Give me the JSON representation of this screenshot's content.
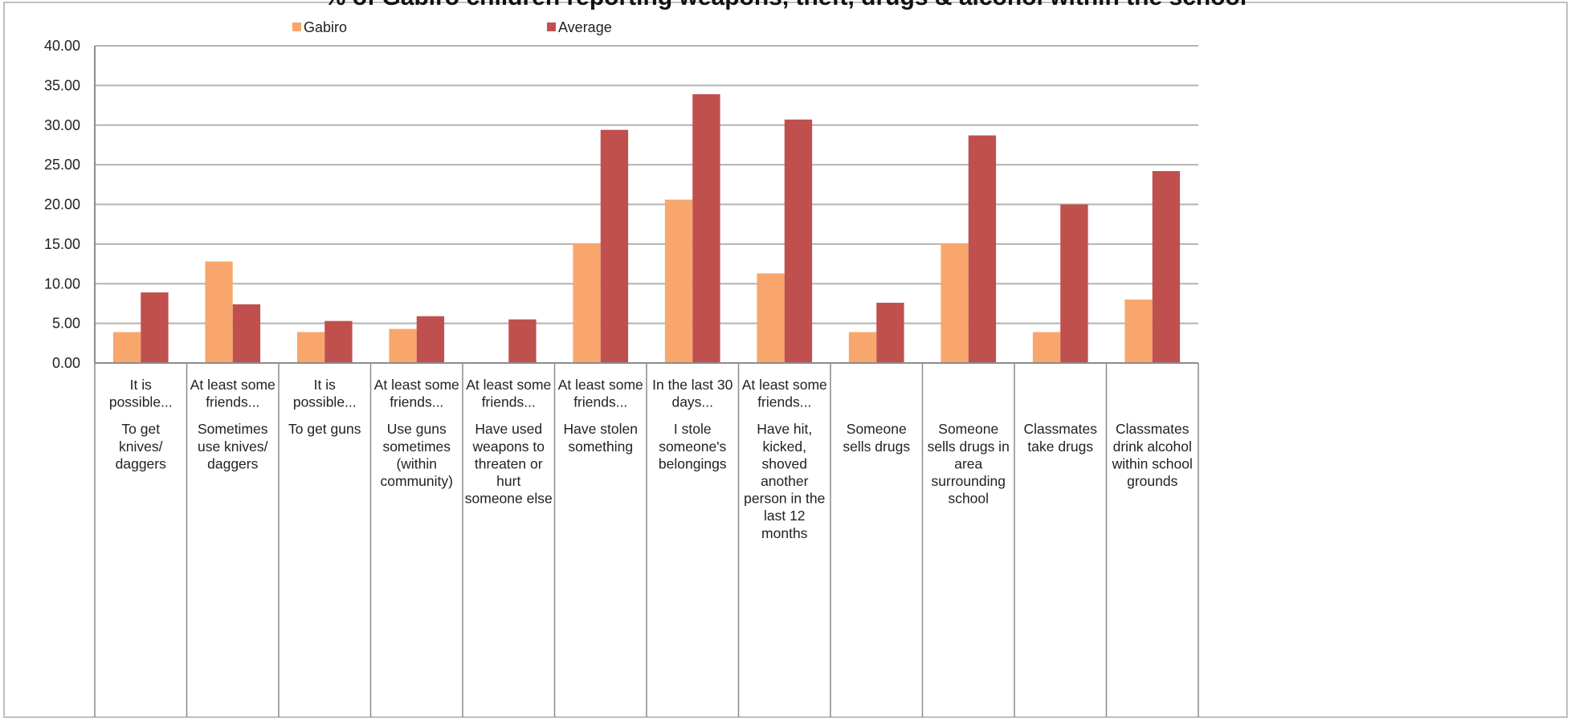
{
  "chart_data": {
    "type": "bar",
    "title": "% of Gabiro children reporting weapons, theft, drugs & alcohol within the school",
    "xlabel": "",
    "ylabel": "",
    "ylim": [
      0,
      40
    ],
    "yticks": [
      "0.00",
      "5.00",
      "10.00",
      "15.00",
      "20.00",
      "25.00",
      "30.00",
      "35.00",
      "40.00"
    ],
    "grid": true,
    "legend_position": "top",
    "categories": [
      {
        "group": [
          "It is",
          "possible..."
        ],
        "item": [
          "To get",
          "knives/",
          "daggers"
        ]
      },
      {
        "group": [
          "At least some",
          "friends..."
        ],
        "item": [
          "Sometimes",
          "use knives/",
          "daggers"
        ]
      },
      {
        "group": [
          "It is",
          "possible..."
        ],
        "item": [
          "To get guns"
        ]
      },
      {
        "group": [
          "At least some",
          "friends..."
        ],
        "item": [
          "Use guns",
          "sometimes",
          "(within",
          "community)"
        ]
      },
      {
        "group": [
          "At least some",
          "friends..."
        ],
        "item": [
          "Have used",
          "weapons to",
          "threaten or",
          "hurt",
          "someone else"
        ]
      },
      {
        "group": [
          "At least some",
          "friends..."
        ],
        "item": [
          "Have stolen",
          "something"
        ]
      },
      {
        "group": [
          "In the last 30",
          "days..."
        ],
        "item": [
          "I stole",
          "someone's",
          "belongings"
        ]
      },
      {
        "group": [
          "At least some",
          "friends..."
        ],
        "item": [
          "Have hit,",
          "kicked,",
          "shoved",
          "another",
          "person in the",
          "last 12",
          "months"
        ]
      },
      {
        "group": [],
        "item": [
          "Someone",
          "sells drugs"
        ]
      },
      {
        "group": [],
        "item": [
          "Someone",
          "sells drugs in",
          "area",
          "surrounding",
          "school"
        ]
      },
      {
        "group": [],
        "item": [
          "Classmates",
          "take drugs"
        ]
      },
      {
        "group": [],
        "item": [
          "Classmates",
          "drink alcohol",
          "within school",
          "grounds"
        ]
      }
    ],
    "series": [
      {
        "name": "Gabiro",
        "color": "#F9A66C",
        "values": [
          3.9,
          12.8,
          3.9,
          4.3,
          0,
          15.1,
          20.6,
          11.3,
          3.9,
          15.1,
          3.9,
          8.0
        ]
      },
      {
        "name": "Average",
        "color": "#C0504D",
        "values": [
          8.9,
          7.4,
          5.3,
          5.9,
          5.5,
          29.4,
          33.9,
          30.7,
          7.6,
          28.7,
          20.0,
          24.2
        ]
      }
    ]
  }
}
